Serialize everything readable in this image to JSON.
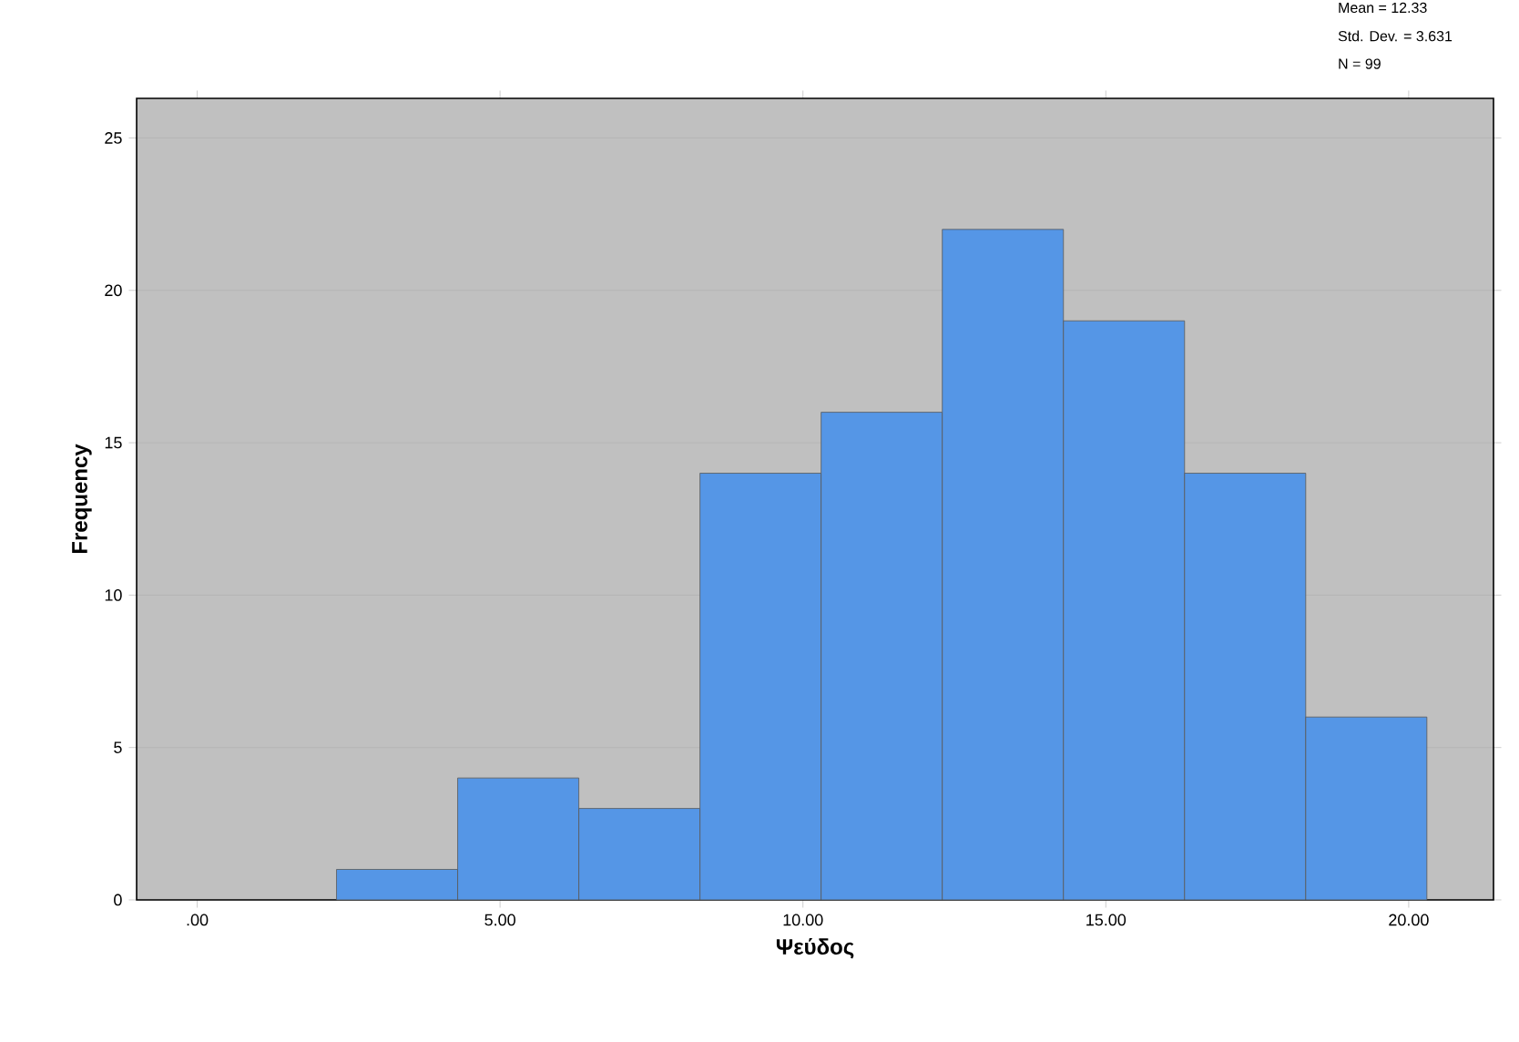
{
  "chart_data": {
    "type": "histogram",
    "xlabel": "Ψεύδος",
    "ylabel": "Frequency",
    "annotations": [
      "Mean = 12.33",
      "Std. Dev. = 3.631",
      "N = 99"
    ],
    "bins": [
      2.3,
      4.3,
      6.3,
      8.3,
      10.3,
      12.3,
      14.3,
      16.3,
      18.3,
      20.3
    ],
    "values": [
      1,
      4,
      3,
      14,
      16,
      22,
      19,
      14,
      6
    ],
    "color": "#5596e6",
    "xlim": [
      -1,
      21.4
    ],
    "ylim": [
      0,
      26.3
    ],
    "xticks": [
      {
        "value": 0,
        "label": ".00"
      },
      {
        "value": 5,
        "label": "5.00"
      },
      {
        "value": 10,
        "label": "10.00"
      },
      {
        "value": 15,
        "label": "15.00"
      },
      {
        "value": 20,
        "label": "20.00"
      }
    ],
    "yticks": [
      0,
      5,
      10,
      15,
      20,
      25
    ],
    "grid": "y"
  }
}
